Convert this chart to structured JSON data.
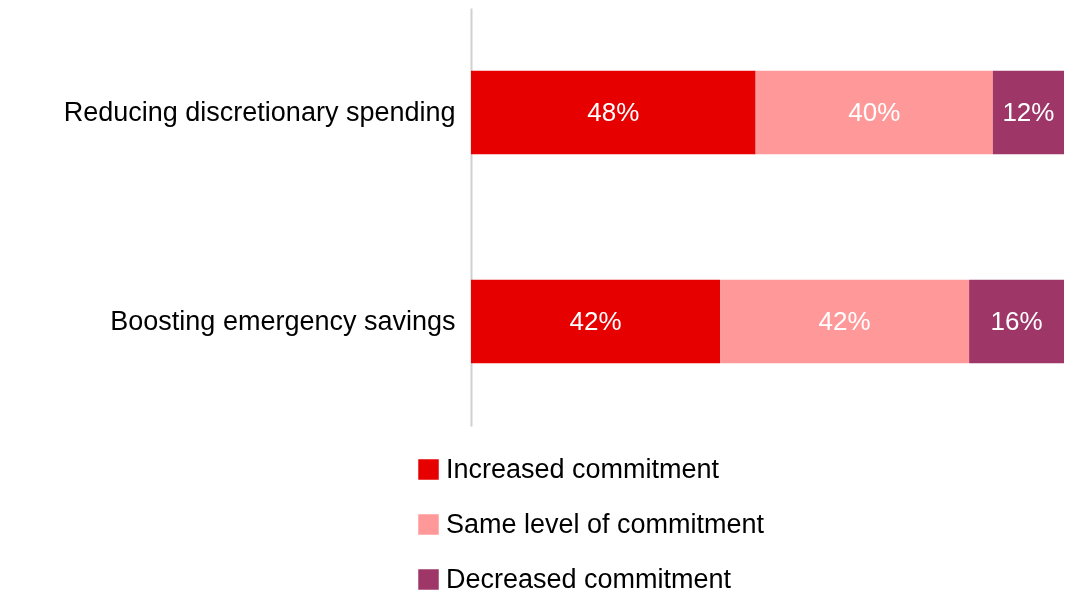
{
  "chart_data": {
    "type": "bar",
    "orientation": "horizontal",
    "stacked": true,
    "categories": [
      "Reducing discretionary spending",
      "Boosting emergency savings"
    ],
    "series": [
      {
        "name": "Increased commitment",
        "color": "#e60000",
        "values": [
          48,
          42
        ],
        "value_labels": [
          "48%",
          "42%"
        ]
      },
      {
        "name": "Same level of commitment",
        "color": "#ff9999",
        "values": [
          40,
          42
        ],
        "value_labels": [
          "40%",
          "42%"
        ]
      },
      {
        "name": "Decreased commitment",
        "color": "#9e3668",
        "values": [
          12,
          16
        ],
        "value_labels": [
          "12%",
          "16%"
        ]
      }
    ],
    "xlim": [
      0,
      100
    ],
    "tick_labels": "y",
    "legend": "bottom"
  }
}
